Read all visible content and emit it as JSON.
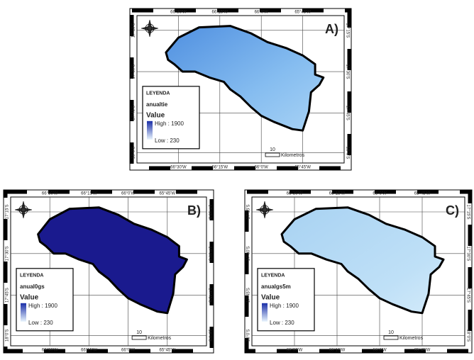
{
  "panels": [
    {
      "label": "A)",
      "layer": "anualtie",
      "lon_labels": [
        "66°30'W",
        "66°15'W",
        "66°0'W",
        "65°45'W"
      ],
      "lat_labels": [
        "17°15'S",
        "17°30'S",
        "17°45'S",
        "18°0'S"
      ],
      "legend": {
        "title": "LEYENDA",
        "heading": "Value",
        "high": "High : 1900",
        "low": "Low : 230"
      },
      "scale": {
        "distance": "10",
        "unit": "Kilometros"
      }
    },
    {
      "label": "B)",
      "layer": "anual0gs",
      "lon_labels": [
        "66°30'W",
        "66°15'W",
        "66°0'W",
        "65°45'W"
      ],
      "lat_labels": [
        "17°15'S",
        "17°30'S",
        "17°45'S",
        "18°0'S"
      ],
      "legend": {
        "title": "LEYENDA",
        "heading": "Value",
        "high": "High : 1900",
        "low": "Low : 230"
      },
      "scale": {
        "distance": "10",
        "unit": "Kilometros"
      }
    },
    {
      "label": "C)",
      "layer": "anualgs5m",
      "lon_labels": [
        "66°30'W",
        "66°15'W",
        "66°0'W",
        "65°45'W"
      ],
      "lat_labels": [
        "17°15'S",
        "17°30'S",
        "17°45'S",
        "18°0'S"
      ],
      "legend": {
        "title": "LEYENDA",
        "heading": "Value",
        "high": "High : 1900",
        "low": "Low : 230"
      },
      "scale": {
        "distance": "10",
        "unit": "Kilometros"
      }
    }
  ]
}
